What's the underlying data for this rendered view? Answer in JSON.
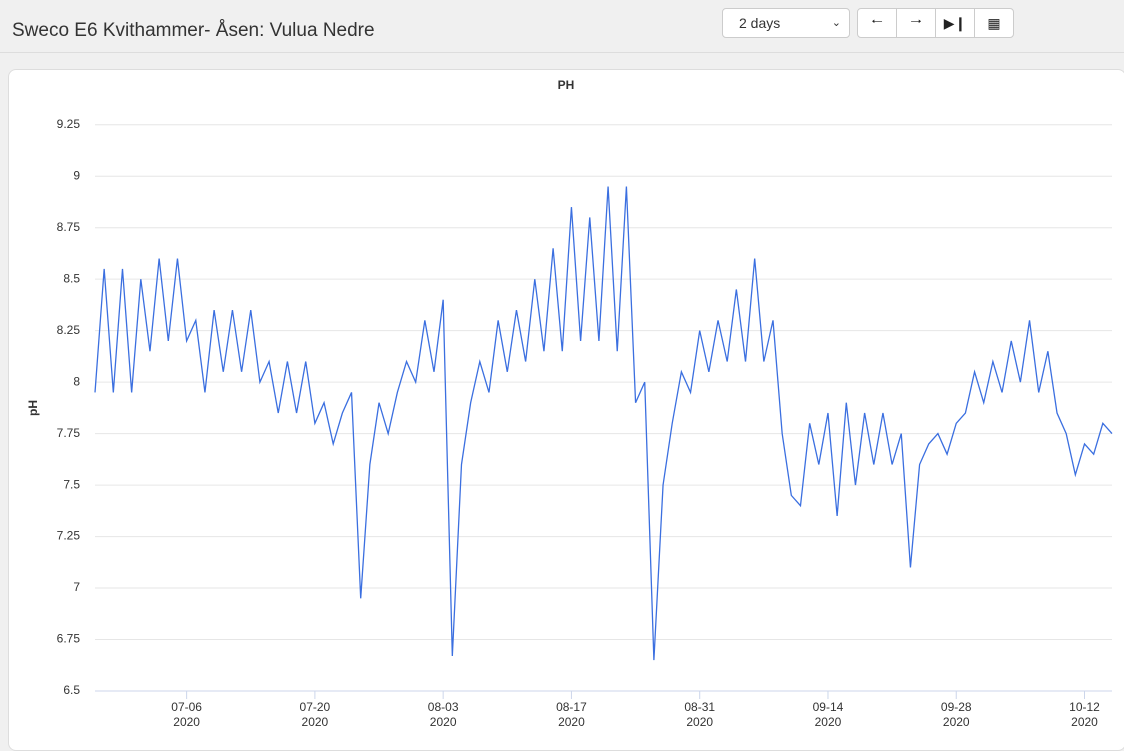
{
  "header": {
    "title": "Sweco E6 Kvithammer- Åsen: Vulua Nedre",
    "range": "2 days"
  },
  "chart_data": {
    "type": "line",
    "title": "PH",
    "y_label": "pH",
    "x": [
      "2020-06-26",
      "2020-06-27",
      "2020-06-28",
      "2020-06-29",
      "2020-06-30",
      "2020-07-01",
      "2020-07-02",
      "2020-07-03",
      "2020-07-04",
      "2020-07-05",
      "2020-07-06",
      "2020-07-07",
      "2020-07-08",
      "2020-07-09",
      "2020-07-10",
      "2020-07-11",
      "2020-07-12",
      "2020-07-13",
      "2020-07-14",
      "2020-07-15",
      "2020-07-16",
      "2020-07-17",
      "2020-07-18",
      "2020-07-19",
      "2020-07-20",
      "2020-07-21",
      "2020-07-22",
      "2020-07-23",
      "2020-07-24",
      "2020-07-25",
      "2020-07-26",
      "2020-07-27",
      "2020-07-28",
      "2020-07-29",
      "2020-07-30",
      "2020-07-31",
      "2020-08-01",
      "2020-08-02",
      "2020-08-03",
      "2020-08-04",
      "2020-08-05",
      "2020-08-06",
      "2020-08-07",
      "2020-08-08",
      "2020-08-09",
      "2020-08-10",
      "2020-08-11",
      "2020-08-12",
      "2020-08-13",
      "2020-08-14",
      "2020-08-15",
      "2020-08-16",
      "2020-08-17",
      "2020-08-18",
      "2020-08-19",
      "2020-08-20",
      "2020-08-21",
      "2020-08-22",
      "2020-08-23",
      "2020-08-24",
      "2020-08-25",
      "2020-08-26",
      "2020-08-27",
      "2020-08-28",
      "2020-08-29",
      "2020-08-30",
      "2020-08-31",
      "2020-09-01",
      "2020-09-02",
      "2020-09-03",
      "2020-09-04",
      "2020-09-05",
      "2020-09-06",
      "2020-09-07",
      "2020-09-08",
      "2020-09-09",
      "2020-09-10",
      "2020-09-11",
      "2020-09-12",
      "2020-09-13",
      "2020-09-14",
      "2020-09-15",
      "2020-09-16",
      "2020-09-17",
      "2020-09-18",
      "2020-09-19",
      "2020-09-20",
      "2020-09-21",
      "2020-09-22",
      "2020-09-23",
      "2020-09-24",
      "2020-09-25",
      "2020-09-26",
      "2020-09-27",
      "2020-09-28",
      "2020-09-29",
      "2020-09-30",
      "2020-10-01",
      "2020-10-02",
      "2020-10-03",
      "2020-10-04",
      "2020-10-05",
      "2020-10-06",
      "2020-10-07",
      "2020-10-08",
      "2020-10-09",
      "2020-10-10",
      "2020-10-11",
      "2020-10-12",
      "2020-10-13",
      "2020-10-14",
      "2020-10-15"
    ],
    "series": [
      {
        "name": "pH",
        "color": "#3b6fe0",
        "values": [
          7.95,
          8.55,
          7.95,
          8.55,
          7.95,
          8.5,
          8.15,
          8.6,
          8.2,
          8.6,
          8.2,
          8.3,
          7.95,
          8.35,
          8.05,
          8.35,
          8.05,
          8.35,
          8.0,
          8.1,
          7.85,
          8.1,
          7.85,
          8.1,
          7.8,
          7.9,
          7.7,
          7.85,
          7.95,
          6.95,
          7.6,
          7.9,
          7.75,
          7.95,
          8.1,
          8.0,
          8.3,
          8.05,
          8.4,
          6.67,
          7.6,
          7.9,
          8.1,
          7.95,
          8.3,
          8.05,
          8.35,
          8.1,
          8.5,
          8.15,
          8.65,
          8.15,
          8.85,
          8.2,
          8.8,
          8.2,
          8.95,
          8.15,
          8.95,
          7.9,
          8.0,
          6.65,
          7.5,
          7.8,
          8.05,
          7.95,
          8.25,
          8.05,
          8.3,
          8.1,
          8.45,
          8.1,
          8.6,
          8.1,
          8.3,
          7.75,
          7.45,
          7.4,
          7.8,
          7.6,
          7.85,
          7.35,
          7.9,
          7.5,
          7.85,
          7.6,
          7.85,
          7.6,
          7.75,
          7.1,
          7.6,
          7.7,
          7.75,
          7.65,
          7.8,
          7.85,
          8.05,
          7.9,
          8.1,
          7.95,
          8.2,
          8.0,
          8.3,
          7.95,
          8.15,
          7.85,
          7.75,
          7.55,
          7.7,
          7.65,
          7.8,
          7.75
        ]
      }
    ],
    "xlim": [
      "2020-06-26",
      "2020-10-15"
    ],
    "xticks": [
      {
        "value": "2020-07-06",
        "label": "07-06",
        "year": "2020"
      },
      {
        "value": "2020-07-20",
        "label": "07-20",
        "year": "2020"
      },
      {
        "value": "2020-08-03",
        "label": "08-03",
        "year": "2020"
      },
      {
        "value": "2020-08-17",
        "label": "08-17",
        "year": "2020"
      },
      {
        "value": "2020-08-31",
        "label": "08-31",
        "year": "2020"
      },
      {
        "value": "2020-09-14",
        "label": "09-14",
        "year": "2020"
      },
      {
        "value": "2020-09-28",
        "label": "09-28",
        "year": "2020"
      },
      {
        "value": "2020-10-12",
        "label": "10-12",
        "year": "2020"
      }
    ],
    "ylim": [
      6.5,
      9.375
    ],
    "yticks": [
      6.5,
      6.75,
      7,
      7.25,
      7.5,
      7.75,
      8,
      8.25,
      8.5,
      8.75,
      9,
      9.25
    ],
    "grid": true
  }
}
